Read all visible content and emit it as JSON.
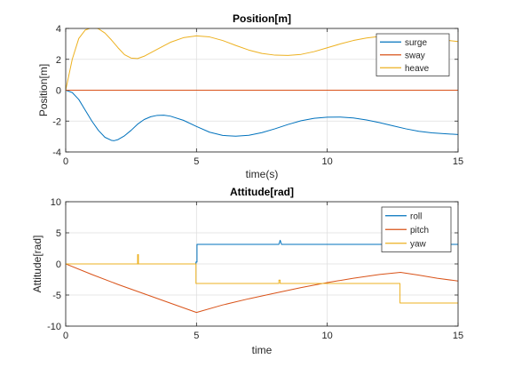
{
  "chart_data": [
    {
      "type": "line",
      "title": "Position[m]",
      "xlabel": "time(s)",
      "ylabel": "Position[m]",
      "xlim": [
        0,
        15
      ],
      "ylim": [
        -4,
        4
      ],
      "xticks": [
        0,
        5,
        10,
        15
      ],
      "yticks": [
        -4,
        -2,
        0,
        2,
        4
      ],
      "grid": true,
      "legend_position": "top-right",
      "series": [
        {
          "name": "surge",
          "color": "#0072BD",
          "x": [
            0,
            0.25,
            0.5,
            0.75,
            1.0,
            1.25,
            1.5,
            1.75,
            1.85,
            2.0,
            2.25,
            2.5,
            2.75,
            3.0,
            3.25,
            3.5,
            3.75,
            4.0,
            4.5,
            5.0,
            5.5,
            6.0,
            6.5,
            7.0,
            7.5,
            8.0,
            8.5,
            9.0,
            9.5,
            10.0,
            10.5,
            11.0,
            11.5,
            12.0,
            12.5,
            13.0,
            13.5,
            14.0,
            14.5,
            15.0
          ],
          "y": [
            0,
            -0.15,
            -0.6,
            -1.3,
            -2.0,
            -2.6,
            -3.05,
            -3.25,
            -3.27,
            -3.2,
            -2.95,
            -2.6,
            -2.2,
            -1.9,
            -1.72,
            -1.63,
            -1.62,
            -1.68,
            -1.95,
            -2.35,
            -2.72,
            -2.93,
            -2.98,
            -2.92,
            -2.75,
            -2.5,
            -2.22,
            -1.98,
            -1.82,
            -1.75,
            -1.74,
            -1.8,
            -1.93,
            -2.1,
            -2.3,
            -2.5,
            -2.66,
            -2.76,
            -2.82,
            -2.87
          ]
        },
        {
          "name": "sway",
          "color": "#D95319",
          "x": [
            0,
            15
          ],
          "y": [
            0,
            0
          ]
        },
        {
          "name": "heave",
          "color": "#EDB120",
          "x": [
            0,
            0.25,
            0.5,
            0.75,
            1.0,
            1.1,
            1.25,
            1.5,
            1.75,
            2.0,
            2.25,
            2.5,
            2.75,
            3.0,
            3.5,
            4.0,
            4.5,
            5.0,
            5.5,
            6.0,
            6.5,
            7.0,
            7.5,
            8.0,
            8.5,
            9.0,
            9.5,
            10.0,
            10.5,
            11.0,
            11.5,
            12.0,
            12.5,
            13.0,
            13.5,
            14.0,
            14.5,
            15.0
          ],
          "y": [
            0,
            2.0,
            3.35,
            3.9,
            4.05,
            4.05,
            3.98,
            3.7,
            3.25,
            2.75,
            2.3,
            2.08,
            2.05,
            2.2,
            2.65,
            3.1,
            3.4,
            3.52,
            3.45,
            3.22,
            2.9,
            2.6,
            2.38,
            2.27,
            2.25,
            2.32,
            2.5,
            2.75,
            3.0,
            3.22,
            3.38,
            3.48,
            3.52,
            3.5,
            3.45,
            3.35,
            3.25,
            3.15
          ]
        }
      ]
    },
    {
      "type": "line",
      "title": "Attitude[rad]",
      "xlabel": "time",
      "ylabel": "Attitude[rad]",
      "xlim": [
        0,
        15
      ],
      "ylim": [
        -10,
        10
      ],
      "xticks": [
        0,
        5,
        10,
        15
      ],
      "yticks": [
        -10,
        -5,
        0,
        5,
        10
      ],
      "grid": true,
      "legend_position": "top-right",
      "series": [
        {
          "name": "roll",
          "color": "#0072BD",
          "x": [
            0,
            4.98,
            4.98,
            5.02,
            5.02,
            8.15,
            8.2,
            8.25,
            8.3,
            15.0
          ],
          "y": [
            0,
            0,
            0.3,
            0.3,
            3.14,
            3.14,
            3.8,
            3.14,
            3.14,
            3.14
          ]
        },
        {
          "name": "pitch",
          "color": "#D95319",
          "x": [
            0,
            1,
            2,
            3,
            4,
            5.0,
            6,
            7,
            8,
            9,
            10,
            11,
            12,
            12.8,
            13.5,
            14.2,
            15.0
          ],
          "y": [
            0,
            -1.7,
            -3.3,
            -4.8,
            -6.3,
            -7.8,
            -6.6,
            -5.6,
            -4.7,
            -3.8,
            -3.0,
            -2.3,
            -1.7,
            -1.35,
            -1.8,
            -2.3,
            -2.75
          ]
        },
        {
          "name": "yaw",
          "color": "#EDB120",
          "x": [
            0,
            2.75,
            2.75,
            2.78,
            2.78,
            4.98,
            4.98,
            8.15,
            8.15,
            8.2,
            8.2,
            12.78,
            12.78,
            15.0
          ],
          "y": [
            0,
            0,
            1.5,
            1.5,
            0,
            0,
            -3.14,
            -3.14,
            -2.6,
            -2.6,
            -3.14,
            -3.14,
            -6.28,
            -6.28
          ]
        }
      ]
    }
  ]
}
